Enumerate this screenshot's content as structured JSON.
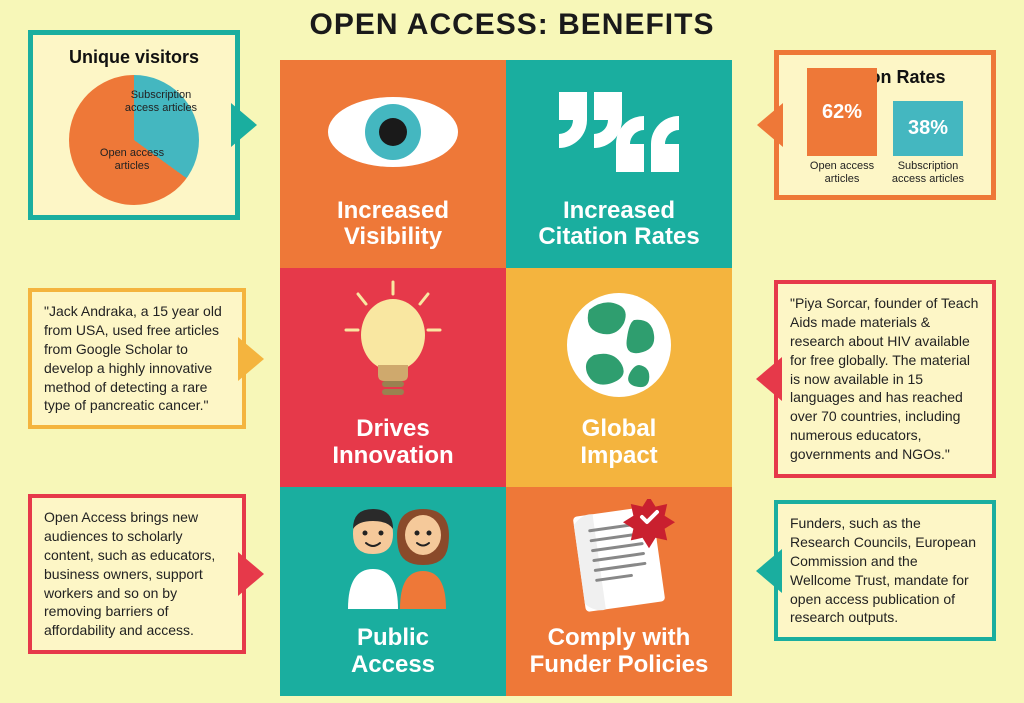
{
  "title": "OPEN ACCESS: BENEFITS",
  "colors": {
    "teal": "#1aae9f",
    "orange": "#ee7838",
    "red": "#e6394a",
    "gold": "#f4b43e",
    "cream": "#fdf6c6",
    "bgCream": "#f7f7b8",
    "tealDark": "#148f82",
    "tealBlue": "#44b7c0"
  },
  "tiles": [
    {
      "label": "Increased\nVisibility",
      "bg": "#ee7838",
      "icon": "eye"
    },
    {
      "label": "Increased\nCitation Rates",
      "bg": "#1aae9f",
      "icon": "quotes"
    },
    {
      "label": "Drives\nInnovation",
      "bg": "#e6394a",
      "icon": "bulb"
    },
    {
      "label": "Global\nImpact",
      "bg": "#f4b43e",
      "icon": "globe"
    },
    {
      "label": "Public\nAccess",
      "bg": "#1aae9f",
      "icon": "people"
    },
    {
      "label": "Comply with\nFunder Policies",
      "bg": "#ee7838",
      "icon": "policy"
    }
  ],
  "callouts": {
    "topLeft": {
      "title": "Unique visitors",
      "border": "#1aae9f",
      "arrow": "#1aae9f",
      "pie": {
        "slice1": {
          "label": "Subscription\naccess articles",
          "color": "#44b7c0",
          "pct": 35
        },
        "slice2": {
          "label": "Open access\narticles",
          "color": "#ee7838",
          "pct": 65
        }
      }
    },
    "topRight": {
      "title": "Citation Rates",
      "border": "#ee7838",
      "arrow": "#ee7838",
      "bars": [
        {
          "value": "62%",
          "label": "Open access\narticles",
          "color": "#ee7838",
          "height": 88
        },
        {
          "value": "38%",
          "label": "Subscription\naccess articles",
          "color": "#44b7c0",
          "height": 55
        }
      ]
    },
    "midLeft": {
      "text": "\"Jack Andraka, a 15 year old from USA, used free articles from Google Scholar to develop a highly innovative method of detecting a rare type of pancreatic cancer.\"",
      "border": "#f4b43e",
      "arrow": "#f4b43e"
    },
    "midRight": {
      "text": "\"Piya Sorcar, founder of Teach Aids made materials & research about HIV available  for free globally. The material is now available in 15 languages and has reached over 70 countries, including numerous educators, governments and NGOs.\"",
      "border": "#e6394a",
      "arrow": "#e6394a"
    },
    "botLeft": {
      "text": "Open Access brings new audiences to scholarly content, such as educators, business owners, support workers and so on by removing barriers of affordability and access.",
      "border": "#e6394a",
      "arrow": "#e6394a"
    },
    "botRight": {
      "text": "Funders, such as the Research Councils, European Commission and the Wellcome Trust, mandate for open access publication of research outputs.",
      "border": "#1aae9f",
      "arrow": "#1aae9f"
    }
  }
}
